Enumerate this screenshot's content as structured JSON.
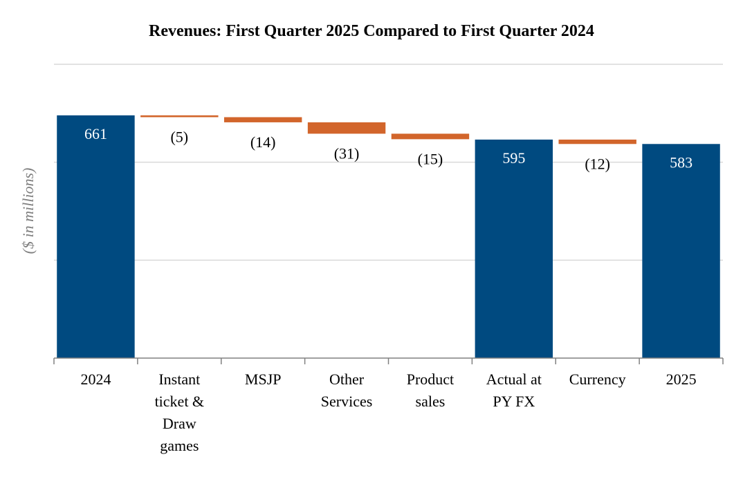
{
  "chart_data": {
    "type": "bar",
    "subtype": "waterfall",
    "title": "Revenues: First Quarter 2025 Compared to First Quarter 2024",
    "xlabel": "",
    "ylabel": "($ in millions)",
    "ylim": [
      0,
      800
    ],
    "grid": true,
    "categories": [
      [
        "2024"
      ],
      [
        "Instant",
        "ticket &",
        "Draw",
        "games"
      ],
      [
        "MSJP"
      ],
      [
        "Other",
        "Services"
      ],
      [
        "Product",
        "sales"
      ],
      [
        "Actual at",
        "PY FX"
      ],
      [
        "Currency"
      ],
      [
        "2025"
      ]
    ],
    "values": [
      661,
      -5,
      -14,
      -31,
      -15,
      595,
      -12,
      583
    ],
    "kinds": [
      "total",
      "delta",
      "delta",
      "delta",
      "delta",
      "total",
      "delta",
      "total"
    ],
    "labels": [
      "661",
      "(5)",
      "(14)",
      "(31)",
      "(15)",
      "595",
      "(12)",
      "583"
    ],
    "colors": {
      "total": "#004a80",
      "decrease": "#d2652b",
      "total_label": "#ffffff",
      "delta_label": "#000000",
      "grid": "#d9d9d9",
      "axis": "#808080"
    }
  }
}
